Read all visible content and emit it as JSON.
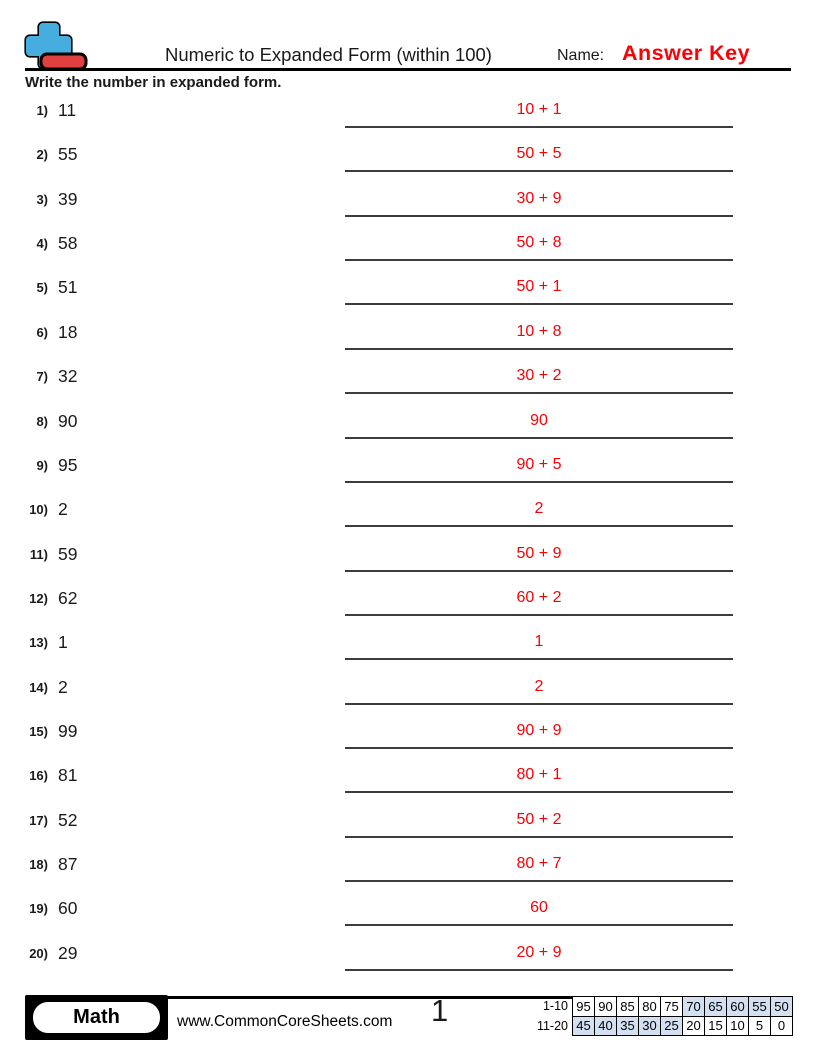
{
  "header": {
    "title": "Numeric to Expanded Form (within 100)",
    "name_label": "Name:",
    "name_value": "Answer Key",
    "instruction": "Write the number in expanded form."
  },
  "problems": [
    {
      "num": "1)",
      "question": "11",
      "answer": "10 + 1"
    },
    {
      "num": "2)",
      "question": "55",
      "answer": "50 + 5"
    },
    {
      "num": "3)",
      "question": "39",
      "answer": "30 + 9"
    },
    {
      "num": "4)",
      "question": "58",
      "answer": "50 + 8"
    },
    {
      "num": "5)",
      "question": "51",
      "answer": "50 + 1"
    },
    {
      "num": "6)",
      "question": "18",
      "answer": "10 + 8"
    },
    {
      "num": "7)",
      "question": "32",
      "answer": "30 + 2"
    },
    {
      "num": "8)",
      "question": "90",
      "answer": "90"
    },
    {
      "num": "9)",
      "question": "95",
      "answer": "90 + 5"
    },
    {
      "num": "10)",
      "question": "2",
      "answer": "2"
    },
    {
      "num": "11)",
      "question": "59",
      "answer": "50 + 9"
    },
    {
      "num": "12)",
      "question": "62",
      "answer": "60 + 2"
    },
    {
      "num": "13)",
      "question": "1",
      "answer": "1"
    },
    {
      "num": "14)",
      "question": "2",
      "answer": "2"
    },
    {
      "num": "15)",
      "question": "99",
      "answer": "90 + 9"
    },
    {
      "num": "16)",
      "question": "81",
      "answer": "80 + 1"
    },
    {
      "num": "17)",
      "question": "52",
      "answer": "50 + 2"
    },
    {
      "num": "18)",
      "question": "87",
      "answer": "80 + 7"
    },
    {
      "num": "19)",
      "question": "60",
      "answer": "60"
    },
    {
      "num": "20)",
      "question": "29",
      "answer": "20 + 9"
    }
  ],
  "footer": {
    "subject_badge": "Math",
    "website": "www.CommonCoreSheets.com",
    "page_number": "1",
    "score_table": [
      {
        "label": "1-10",
        "cells": [
          {
            "value": "95",
            "shaded": false
          },
          {
            "value": "90",
            "shaded": false
          },
          {
            "value": "85",
            "shaded": false
          },
          {
            "value": "80",
            "shaded": false
          },
          {
            "value": "75",
            "shaded": false
          },
          {
            "value": "70",
            "shaded": true
          },
          {
            "value": "65",
            "shaded": true
          },
          {
            "value": "60",
            "shaded": true
          },
          {
            "value": "55",
            "shaded": true
          },
          {
            "value": "50",
            "shaded": true
          }
        ]
      },
      {
        "label": "11-20",
        "cells": [
          {
            "value": "45",
            "shaded": true
          },
          {
            "value": "40",
            "shaded": true
          },
          {
            "value": "35",
            "shaded": true
          },
          {
            "value": "30",
            "shaded": true
          },
          {
            "value": "25",
            "shaded": true
          },
          {
            "value": "20",
            "shaded": false
          },
          {
            "value": "15",
            "shaded": false
          },
          {
            "value": "10",
            "shaded": false
          },
          {
            "value": "5",
            "shaded": false
          },
          {
            "value": "0",
            "shaded": false
          }
        ]
      }
    ]
  },
  "colors": {
    "answer_red": "#fb0007",
    "shaded_cell_blue": "#d2e0f2",
    "logo_plus_blue": "#45aede",
    "logo_minus_red": "#e04040"
  }
}
